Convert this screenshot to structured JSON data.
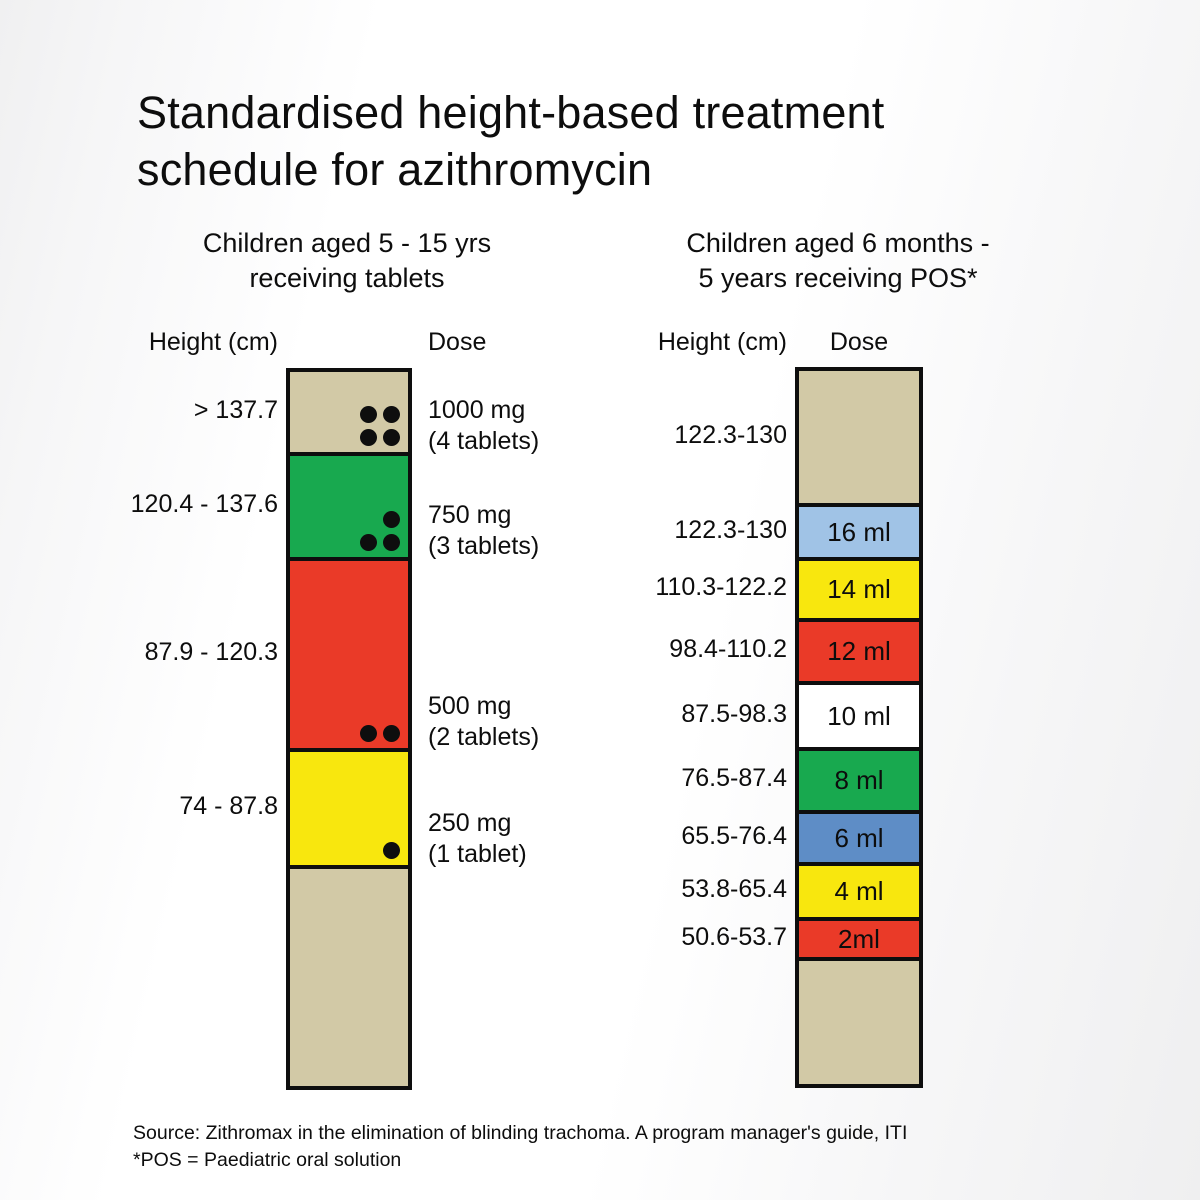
{
  "page": {
    "title_line1": "Standardised height-based treatment",
    "title_line2": "schedule for azithromycin",
    "source_line": "Source: Zithromax in the elimination of blinding trachoma. A program manager's guide, ITI",
    "footnote_line": "*POS = Paediatric oral solution"
  },
  "colors": {
    "tan": "#d2c9a6",
    "green": "#18a94f",
    "red": "#ea3a28",
    "yellow": "#f8e70e",
    "light_blue": "#a0c3e6",
    "blue": "#5e8dc6",
    "white": "#ffffff",
    "line_black": "#0e0e0e"
  },
  "left_chart": {
    "subtitle_line1": "Children aged 5 - 15 yrs",
    "subtitle_line2": "receiving tablets",
    "height_header": "Height (cm)",
    "dose_header": "Dose",
    "segments": [
      {
        "height_label": "> 137.7",
        "color": "#d2c9a6",
        "dose_line1": "1000 mg",
        "dose_line2": "(4 tablets)",
        "tablets": 4
      },
      {
        "height_label": "120.4 - 137.6",
        "color": "#18a94f",
        "dose_line1": "750 mg",
        "dose_line2": "(3 tablets)",
        "tablets": 3
      },
      {
        "height_label": "87.9 - 120.3",
        "color": "#ea3a28",
        "dose_line1": "500 mg",
        "dose_line2": "(2 tablets)",
        "tablets": 2
      },
      {
        "height_label": "74 - 87.8",
        "color": "#f8e70e",
        "dose_line1": "250 mg",
        "dose_line2": "(1 tablet)",
        "tablets": 1
      },
      {
        "height_label": "",
        "color": "#d2c9a6",
        "dose_line1": "",
        "dose_line2": "",
        "tablets": 0
      }
    ]
  },
  "right_chart": {
    "subtitle_line1": "Children aged 6 months -",
    "subtitle_line2": "5 years receiving POS*",
    "height_header": "Height (cm)",
    "dose_header": "Dose",
    "segments": [
      {
        "height_label": "122.3-130",
        "dose_label": "",
        "color": "#d2c9a6"
      },
      {
        "height_label": "122.3-130",
        "dose_label": "16 ml",
        "color": "#a0c3e6"
      },
      {
        "height_label": "110.3-122.2",
        "dose_label": "14 ml",
        "color": "#f8e70e"
      },
      {
        "height_label": "98.4-110.2",
        "dose_label": "12 ml",
        "color": "#ea3a28"
      },
      {
        "height_label": "87.5-98.3",
        "dose_label": "10 ml",
        "color": "#ffffff"
      },
      {
        "height_label": "76.5-87.4",
        "dose_label": "8 ml",
        "color": "#18a94f"
      },
      {
        "height_label": "65.5-76.4",
        "dose_label": "6 ml",
        "color": "#5e8dc6"
      },
      {
        "height_label": "53.8-65.4",
        "dose_label": "4 ml",
        "color": "#f8e70e"
      },
      {
        "height_label": "50.6-53.7",
        "dose_label": "2ml",
        "color": "#ea3a28"
      },
      {
        "height_label": "",
        "dose_label": "",
        "color": "#d2c9a6"
      }
    ]
  },
  "chart_data": [
    {
      "type": "table",
      "title": "Children aged 5 - 15 yrs receiving tablets",
      "columns": [
        "Height (cm)",
        "Dose"
      ],
      "rows": [
        [
          "> 137.7",
          "1000 mg (4 tablets)"
        ],
        [
          "120.4 - 137.6",
          "750 mg (3 tablets)"
        ],
        [
          "87.9 - 120.3",
          "500 mg (2 tablets)"
        ],
        [
          "74 - 87.8",
          "250 mg (1 tablet)"
        ]
      ]
    },
    {
      "type": "table",
      "title": "Children aged 6 months - 5 years receiving POS*",
      "columns": [
        "Height (cm)",
        "Dose"
      ],
      "rows": [
        [
          "122.3-130",
          ""
        ],
        [
          "122.3-130",
          "16 ml"
        ],
        [
          "110.3-122.2",
          "14 ml"
        ],
        [
          "98.4-110.2",
          "12 ml"
        ],
        [
          "87.5-98.3",
          "10 ml"
        ],
        [
          "76.5-87.4",
          "8 ml"
        ],
        [
          "65.5-76.4",
          "6 ml"
        ],
        [
          "53.8-65.4",
          "4 ml"
        ],
        [
          "50.6-53.7",
          "2ml"
        ]
      ]
    }
  ]
}
